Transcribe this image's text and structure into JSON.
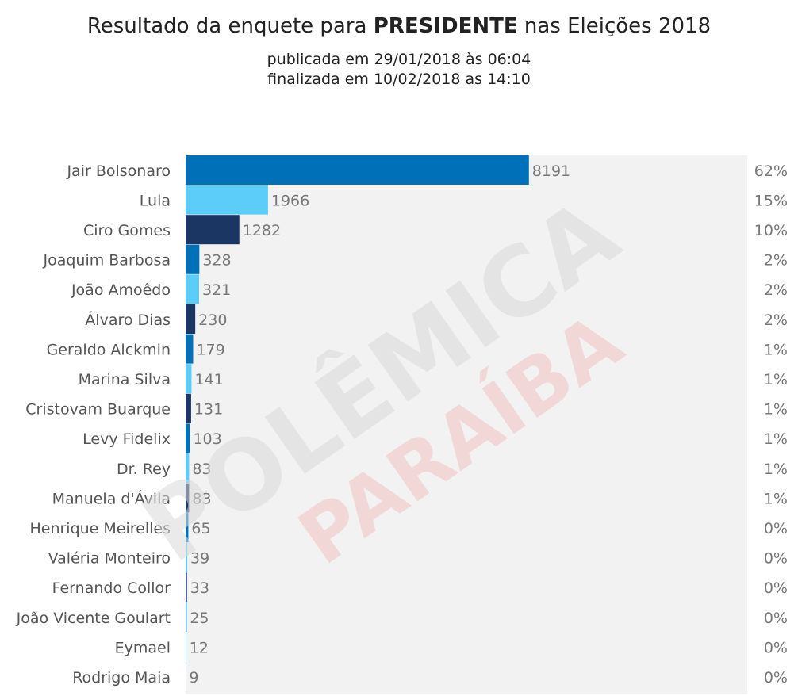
{
  "title": {
    "prefix": "Resultado da enquete para ",
    "bold": "PRESIDENTE",
    "suffix": " nas Eleições 2018"
  },
  "subtitle_1": "publicada em 29/01/2018 às 06:04",
  "subtitle_2": "finalizada em 10/02/2018 as 14:10",
  "watermark": {
    "line_1": "POLÊMICA",
    "line_2": "PARAÍBA"
  },
  "chart_data": {
    "type": "bar",
    "orientation": "horizontal",
    "categories": [
      "Jair Bolsonaro",
      "Lula",
      "Ciro Gomes",
      "Joaquim Barbosa",
      "João Amoêdo",
      "Álvaro Dias",
      "Geraldo Alckmin",
      "Marina Silva",
      "Cristovam Buarque",
      "Levy Fidelix",
      "Dr. Rey",
      "Manuela d'Ávila",
      "Henrique Meirelles",
      "Valéria Monteiro",
      "Fernando Collor",
      "João Vicente Goulart",
      "Eymael",
      "Rodrigo Maia"
    ],
    "values": [
      8191,
      1966,
      1282,
      328,
      321,
      230,
      179,
      141,
      131,
      103,
      83,
      83,
      65,
      39,
      33,
      25,
      12,
      9
    ],
    "percentages": [
      "62%",
      "15%",
      "10%",
      "2%",
      "2%",
      "2%",
      "1%",
      "1%",
      "1%",
      "1%",
      "1%",
      "1%",
      "0%",
      "0%",
      "0%",
      "0%",
      "0%",
      "0%"
    ],
    "xlim": [
      0,
      13400
    ],
    "colors": {
      "cycle": [
        "#0070b8",
        "#5bcdf8",
        "#1c3664"
      ],
      "background_track": "#f2f2f2"
    }
  }
}
